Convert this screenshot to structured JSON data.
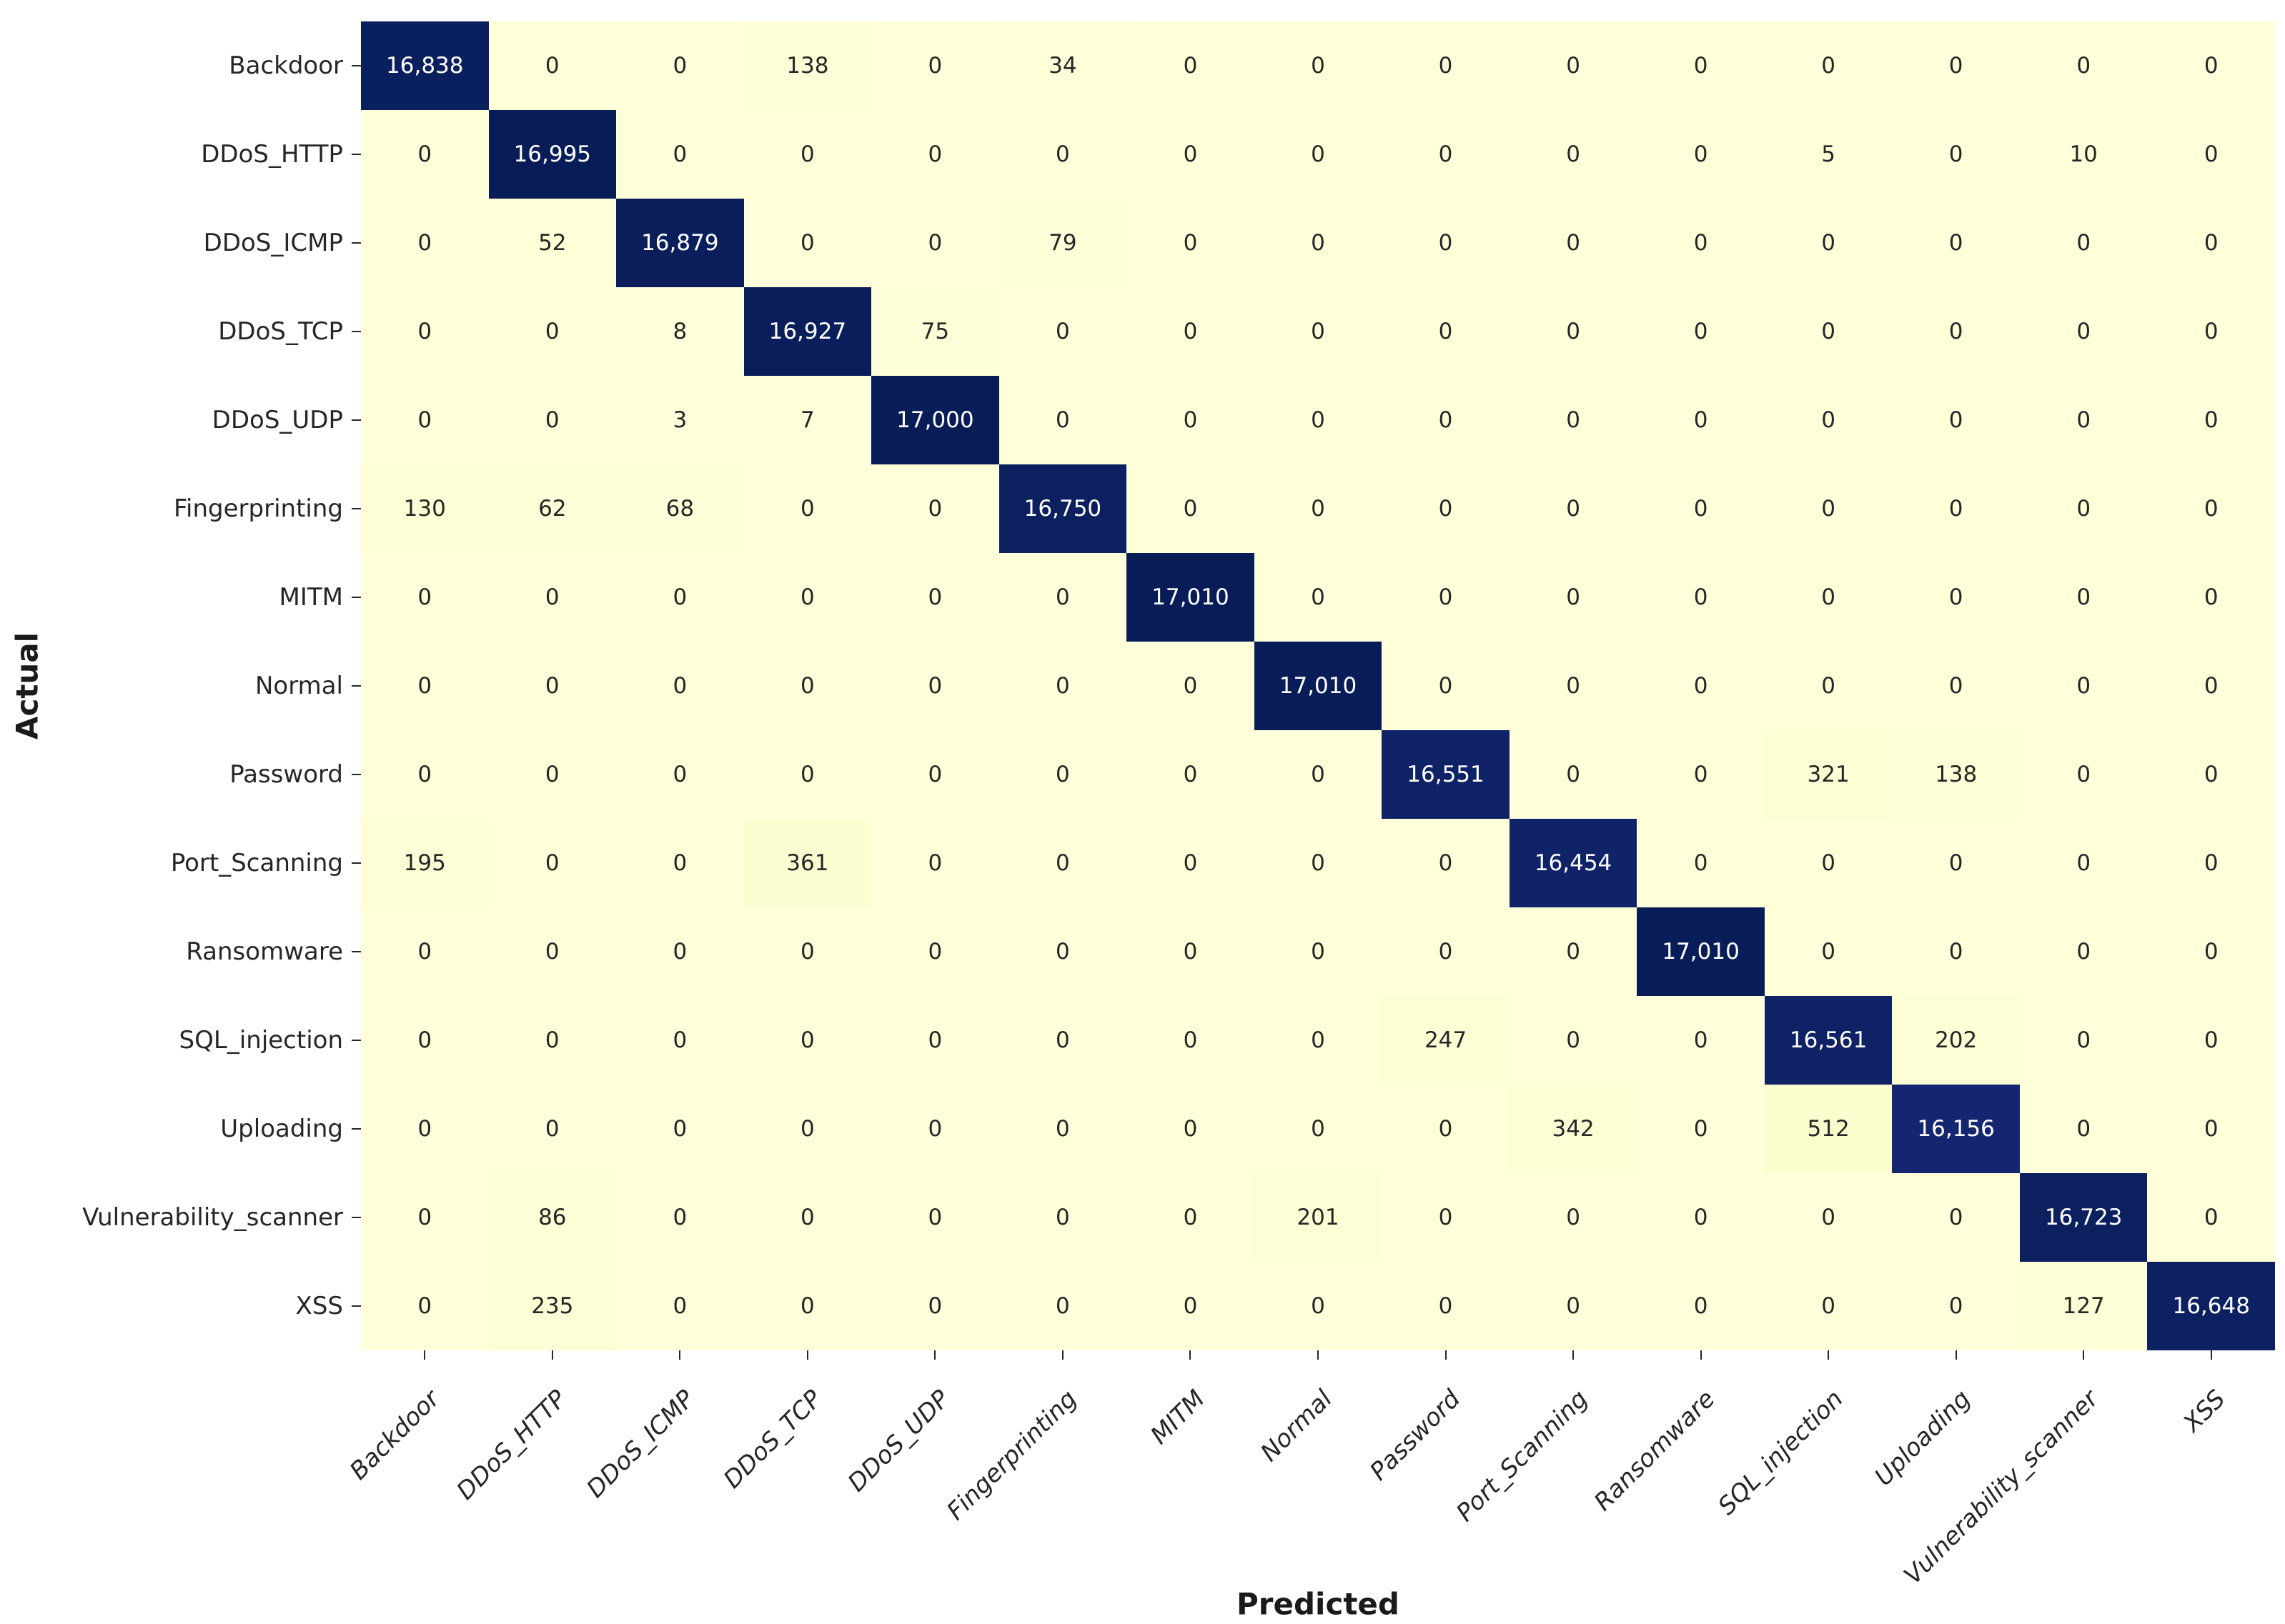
{
  "chart_data": {
    "type": "heatmap",
    "title": "",
    "xlabel": "Predicted",
    "ylabel": "Actual",
    "x_categories": [
      "Backdoor",
      "DDoS_HTTP",
      "DDoS_ICMP",
      "DDoS_TCP",
      "DDoS_UDP",
      "Fingerprinting",
      "MITM",
      "Normal",
      "Password",
      "Port_Scanning",
      "Ransomware",
      "SQL_injection",
      "Uploading",
      "Vulnerability_scanner",
      "XSS"
    ],
    "y_categories": [
      "Backdoor",
      "DDoS_HTTP",
      "DDoS_ICMP",
      "DDoS_TCP",
      "DDoS_UDP",
      "Fingerprinting",
      "MITM",
      "Normal",
      "Password",
      "Port_Scanning",
      "Ransomware",
      "SQL_injection",
      "Uploading",
      "Vulnerability_scanner",
      "XSS"
    ],
    "matrix": [
      [
        16838,
        0,
        0,
        138,
        0,
        34,
        0,
        0,
        0,
        0,
        0,
        0,
        0,
        0,
        0
      ],
      [
        0,
        16995,
        0,
        0,
        0,
        0,
        0,
        0,
        0,
        0,
        0,
        5,
        0,
        10,
        0
      ],
      [
        0,
        52,
        16879,
        0,
        0,
        79,
        0,
        0,
        0,
        0,
        0,
        0,
        0,
        0,
        0
      ],
      [
        0,
        0,
        8,
        16927,
        75,
        0,
        0,
        0,
        0,
        0,
        0,
        0,
        0,
        0,
        0
      ],
      [
        0,
        0,
        3,
        7,
        17000,
        0,
        0,
        0,
        0,
        0,
        0,
        0,
        0,
        0,
        0
      ],
      [
        130,
        62,
        68,
        0,
        0,
        16750,
        0,
        0,
        0,
        0,
        0,
        0,
        0,
        0,
        0
      ],
      [
        0,
        0,
        0,
        0,
        0,
        0,
        17010,
        0,
        0,
        0,
        0,
        0,
        0,
        0,
        0
      ],
      [
        0,
        0,
        0,
        0,
        0,
        0,
        0,
        17010,
        0,
        0,
        0,
        0,
        0,
        0,
        0
      ],
      [
        0,
        0,
        0,
        0,
        0,
        0,
        0,
        0,
        16551,
        0,
        0,
        321,
        138,
        0,
        0
      ],
      [
        195,
        0,
        0,
        361,
        0,
        0,
        0,
        0,
        0,
        16454,
        0,
        0,
        0,
        0,
        0
      ],
      [
        0,
        0,
        0,
        0,
        0,
        0,
        0,
        0,
        0,
        0,
        17010,
        0,
        0,
        0,
        0
      ],
      [
        0,
        0,
        0,
        0,
        0,
        0,
        0,
        0,
        247,
        0,
        0,
        16561,
        202,
        0,
        0
      ],
      [
        0,
        0,
        0,
        0,
        0,
        0,
        0,
        0,
        0,
        342,
        0,
        512,
        16156,
        0,
        0
      ],
      [
        0,
        86,
        0,
        0,
        0,
        0,
        0,
        201,
        0,
        0,
        0,
        0,
        0,
        16723,
        0
      ],
      [
        0,
        235,
        0,
        0,
        0,
        0,
        0,
        0,
        0,
        0,
        0,
        0,
        0,
        127,
        16648
      ]
    ],
    "vmin": 0,
    "vmax": 17010,
    "colormap": "YlGnBu",
    "colormap_anchors": [
      "#ffffd9",
      "#edf8b1",
      "#c7e9b4",
      "#7fcdbb",
      "#41b6c4",
      "#1d91c0",
      "#225ea8",
      "#253494",
      "#081d58"
    ],
    "annotation_format": "thousands-comma",
    "annotation_color_dark": "#262626",
    "annotation_color_light": "#ffffff",
    "tick_color": "#262626",
    "grid": false,
    "legend": "none"
  }
}
